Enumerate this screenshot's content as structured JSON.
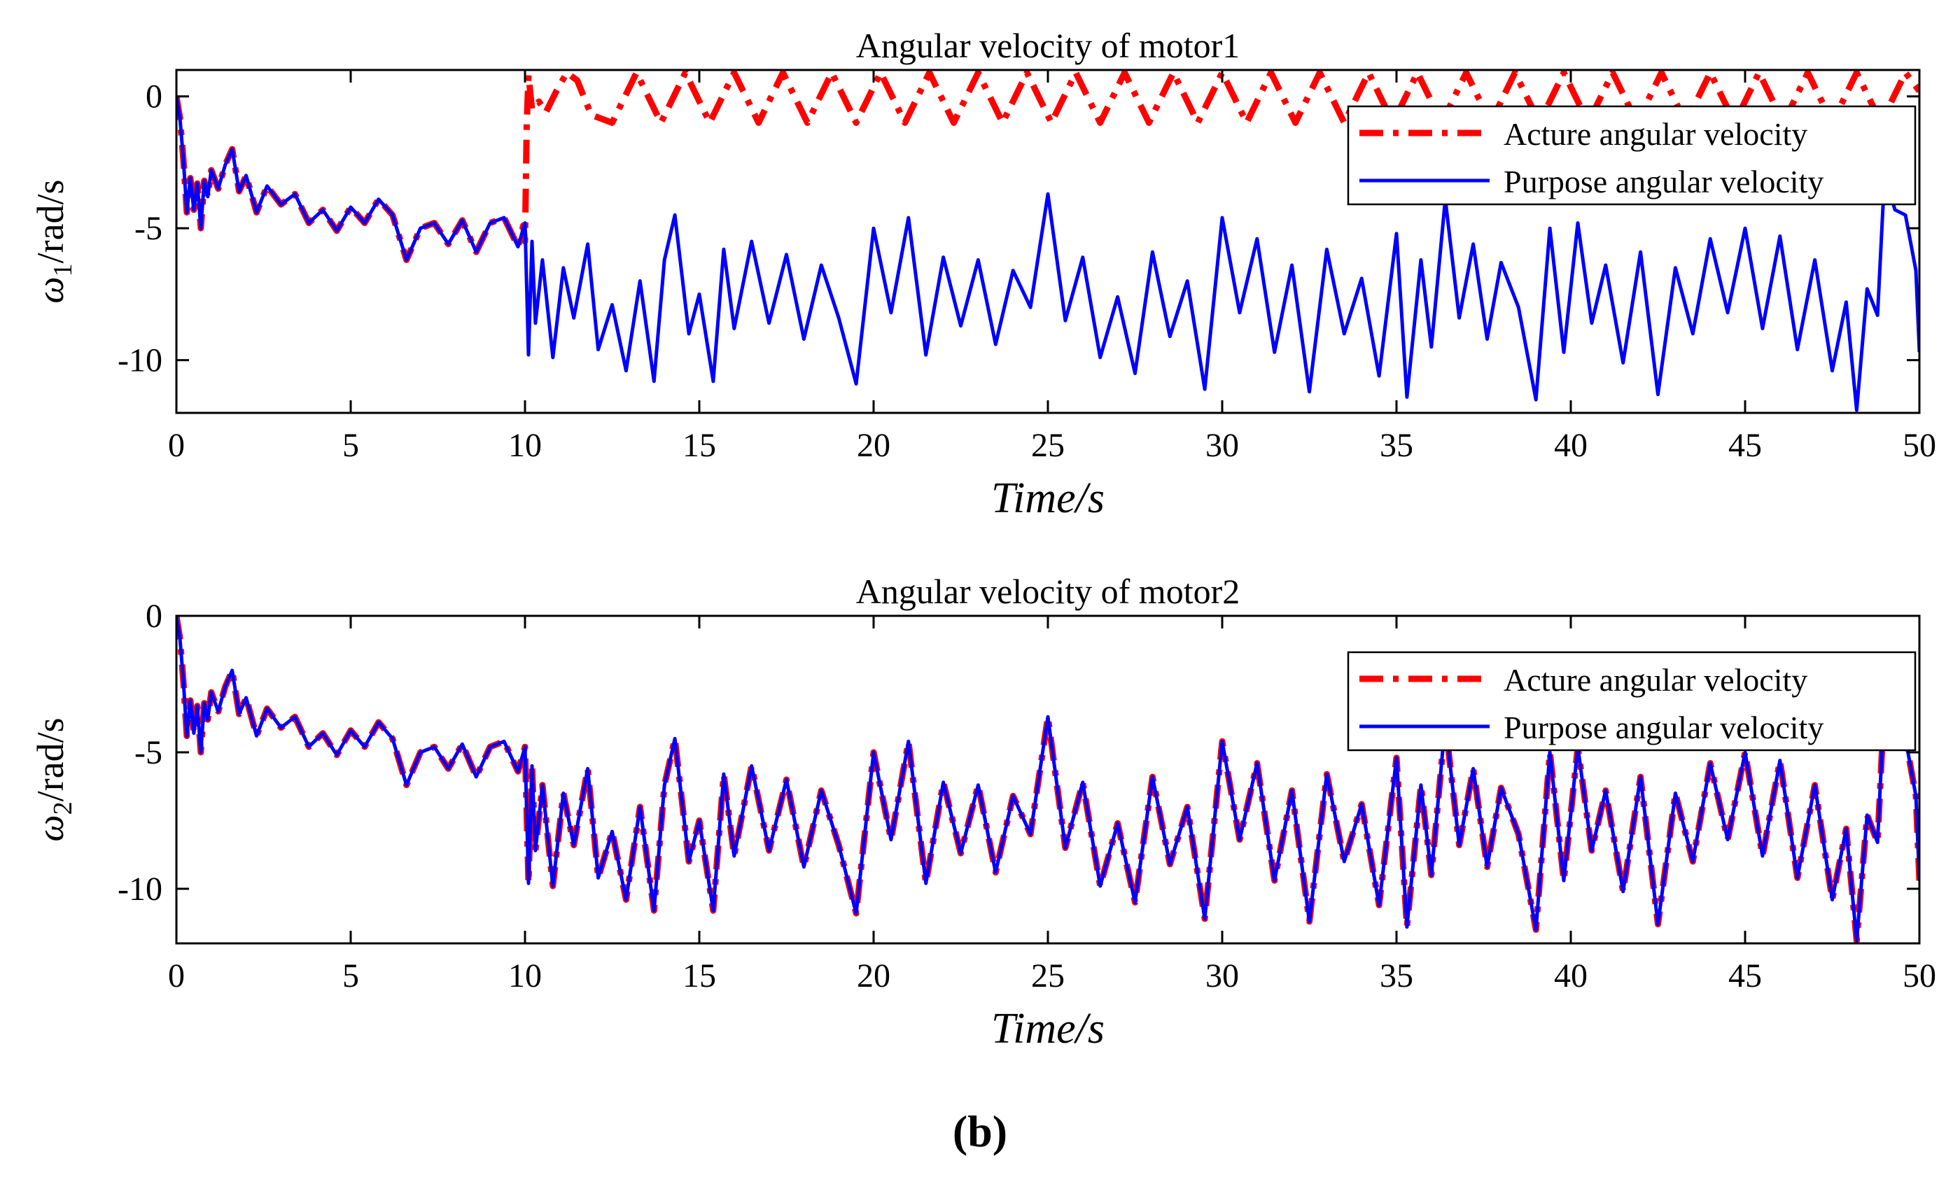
{
  "figure_label": "(b)",
  "colors": {
    "acture": "#ff0000",
    "purpose": "#0000ff",
    "axis": "#000000",
    "background": "#ffffff"
  },
  "chart_data": [
    {
      "type": "line",
      "title": "Angular velocity of motor1",
      "xlabel": "Time/s",
      "ylabel": {
        "symbol": "ω",
        "subscript": "1",
        "unit": "/rad/s"
      },
      "xlim": [
        0,
        50
      ],
      "ylim": [
        -12,
        1
      ],
      "xticks": [
        0,
        5,
        10,
        15,
        20,
        25,
        30,
        35,
        40,
        45,
        50
      ],
      "yticks": [
        0,
        -5,
        -10
      ],
      "legend": {
        "position": "top-right",
        "entries": [
          "Acture angular velocity",
          "Purpose angular velocity"
        ]
      },
      "series": [
        {
          "name": "Acture angular velocity",
          "style": "dash-dot",
          "x": [
            0,
            0.1,
            0.2,
            0.3,
            0.4,
            0.5,
            0.6,
            0.7,
            0.8,
            0.9,
            1.0,
            1.2,
            1.4,
            1.6,
            1.8,
            2.0,
            2.3,
            2.6,
            3.0,
            3.4,
            3.8,
            4.2,
            4.6,
            5.0,
            5.4,
            5.8,
            6.2,
            6.6,
            7.0,
            7.4,
            7.8,
            8.2,
            8.6,
            9.0,
            9.4,
            9.8,
            9.95,
            10.0,
            10.05,
            10.1,
            10.2,
            10.4,
            10.6,
            10.9,
            11.2,
            11.5,
            11.9,
            12.5,
            13.2,
            13.9,
            14.6,
            15.3,
            16.0,
            16.7,
            17.4,
            18.1,
            18.8,
            19.5,
            20.2,
            20.9,
            21.6,
            22.3,
            23.0,
            23.7,
            24.4,
            25.1,
            25.8,
            26.5,
            27.2,
            27.9,
            28.6,
            29.3,
            30.0,
            30.7,
            31.4,
            32.1,
            32.8,
            33.5,
            34.2,
            34.9,
            35.6,
            36.3,
            37.0,
            37.7,
            38.4,
            39.1,
            39.8,
            40.5,
            41.2,
            41.9,
            42.6,
            43.3,
            44.0,
            44.7,
            45.4,
            46.1,
            46.8,
            47.5,
            48.2,
            48.9,
            49.6,
            50.0
          ],
          "y": [
            0,
            -0.8,
            -2.4,
            -4.4,
            -3.1,
            -4.3,
            -3.3,
            -5.0,
            -3.2,
            -3.8,
            -2.8,
            -3.5,
            -2.6,
            -2.0,
            -3.6,
            -3.0,
            -4.4,
            -3.4,
            -4.1,
            -3.7,
            -4.8,
            -4.3,
            -5.1,
            -4.2,
            -4.8,
            -3.9,
            -4.5,
            -6.2,
            -5.0,
            -4.8,
            -5.6,
            -4.7,
            -5.9,
            -4.8,
            -4.6,
            -5.7,
            -4.9,
            -5.5,
            -1.0,
            0.8,
            -0.5,
            -0.2,
            -0.6,
            0.2,
            0.9,
            0.6,
            -0.7,
            -1.0,
            0.9,
            -1.0,
            0.9,
            -1.0,
            0.9,
            -1.0,
            0.9,
            -1.0,
            0.9,
            -1.0,
            0.9,
            -1.0,
            0.9,
            -1.0,
            0.9,
            -1.0,
            0.9,
            -1.0,
            0.9,
            -1.0,
            0.9,
            -1.0,
            0.9,
            -1.0,
            0.9,
            -1.0,
            0.9,
            -1.0,
            0.9,
            -1.0,
            0.9,
            -1.0,
            0.9,
            -1.0,
            0.9,
            -1.0,
            0.9,
            -1.0,
            0.9,
            -1.0,
            0.9,
            -1.0,
            0.9,
            -1.0,
            0.9,
            -1.0,
            0.9,
            -1.0,
            0.9,
            -1.0,
            0.9,
            -1.0,
            0.9,
            0.2
          ]
        },
        {
          "name": "Purpose angular velocity",
          "style": "solid",
          "x": [
            0,
            0.1,
            0.2,
            0.3,
            0.4,
            0.5,
            0.6,
            0.7,
            0.8,
            0.9,
            1.0,
            1.2,
            1.4,
            1.6,
            1.8,
            2.0,
            2.3,
            2.6,
            3.0,
            3.4,
            3.8,
            4.2,
            4.6,
            5.0,
            5.4,
            5.8,
            6.2,
            6.6,
            7.0,
            7.4,
            7.8,
            8.2,
            8.6,
            9.0,
            9.4,
            9.8,
            10.0,
            10.1,
            10.2,
            10.3,
            10.5,
            10.8,
            11.1,
            11.4,
            11.8,
            12.1,
            12.5,
            12.9,
            13.3,
            13.7,
            14.0,
            14.3,
            14.7,
            15.0,
            15.4,
            15.7,
            16.0,
            16.5,
            17.0,
            17.5,
            18.0,
            18.5,
            19.0,
            19.5,
            20.0,
            20.5,
            21.0,
            21.5,
            22.0,
            22.5,
            23.0,
            23.5,
            24.0,
            24.5,
            25.0,
            25.5,
            26.0,
            26.5,
            27.0,
            27.5,
            28.0,
            28.5,
            29.0,
            29.5,
            30.0,
            30.5,
            31.0,
            31.5,
            32.0,
            32.5,
            33.0,
            33.5,
            34.0,
            34.5,
            35.0,
            35.3,
            35.7,
            36.0,
            36.4,
            36.8,
            37.2,
            37.6,
            38.0,
            38.5,
            39.0,
            39.4,
            39.8,
            40.2,
            40.6,
            41.0,
            41.5,
            42.0,
            42.5,
            43.0,
            43.5,
            44.0,
            44.5,
            45.0,
            45.5,
            46.0,
            46.5,
            47.0,
            47.5,
            47.9,
            48.2,
            48.5,
            48.8,
            49.0,
            49.3,
            49.6,
            49.9,
            50.0
          ],
          "y": [
            0,
            -0.8,
            -2.4,
            -4.4,
            -3.1,
            -4.3,
            -3.3,
            -5.0,
            -3.2,
            -3.8,
            -2.8,
            -3.5,
            -2.6,
            -2.0,
            -3.6,
            -3.0,
            -4.4,
            -3.4,
            -4.1,
            -3.7,
            -4.8,
            -4.3,
            -5.1,
            -4.2,
            -4.8,
            -3.9,
            -4.5,
            -6.2,
            -5.0,
            -4.8,
            -5.6,
            -4.7,
            -5.9,
            -4.8,
            -4.6,
            -5.7,
            -4.8,
            -9.8,
            -5.5,
            -8.6,
            -6.2,
            -9.9,
            -6.5,
            -8.4,
            -5.6,
            -9.6,
            -7.9,
            -10.4,
            -7.0,
            -10.8,
            -6.2,
            -4.5,
            -9.0,
            -7.5,
            -10.8,
            -5.8,
            -8.8,
            -5.5,
            -8.6,
            -6.0,
            -9.2,
            -6.4,
            -8.4,
            -10.9,
            -5.0,
            -8.2,
            -4.6,
            -9.8,
            -6.1,
            -8.7,
            -6.2,
            -9.4,
            -6.6,
            -8.0,
            -3.7,
            -8.5,
            -6.1,
            -9.9,
            -7.6,
            -10.5,
            -5.9,
            -9.1,
            -7.0,
            -11.1,
            -4.6,
            -8.2,
            -5.4,
            -9.7,
            -6.4,
            -11.2,
            -5.8,
            -9.0,
            -6.9,
            -10.6,
            -5.2,
            -11.4,
            -6.2,
            -9.5,
            -3.9,
            -8.4,
            -5.6,
            -9.2,
            -6.3,
            -8.0,
            -11.5,
            -5.0,
            -9.7,
            -4.8,
            -8.6,
            -6.4,
            -10.1,
            -5.9,
            -11.3,
            -6.5,
            -9.0,
            -5.4,
            -8.2,
            -5.0,
            -8.8,
            -5.3,
            -9.6,
            -6.2,
            -10.4,
            -7.8,
            -11.9,
            -7.3,
            -8.3,
            -3.0,
            -4.3,
            -4.5,
            -6.6,
            -9.7
          ]
        }
      ]
    },
    {
      "type": "line",
      "title": "Angular velocity of motor2",
      "xlabel": "Time/s",
      "ylabel": {
        "symbol": "ω",
        "subscript": "2",
        "unit": "/rad/s"
      },
      "xlim": [
        0,
        50
      ],
      "ylim": [
        -12,
        0
      ],
      "xticks": [
        0,
        5,
        10,
        15,
        20,
        25,
        30,
        35,
        40,
        45,
        50
      ],
      "yticks": [
        0,
        -5,
        -10
      ],
      "legend": {
        "position": "top-right",
        "entries": [
          "Acture angular velocity",
          "Purpose angular velocity"
        ]
      },
      "series": [
        {
          "name": "Acture angular velocity",
          "style": "dash-dot",
          "x": [
            0,
            0.1,
            0.2,
            0.3,
            0.4,
            0.5,
            0.6,
            0.7,
            0.8,
            0.9,
            1.0,
            1.2,
            1.4,
            1.6,
            1.8,
            2.0,
            2.3,
            2.6,
            3.0,
            3.4,
            3.8,
            4.2,
            4.6,
            5.0,
            5.4,
            5.8,
            6.2,
            6.6,
            7.0,
            7.4,
            7.8,
            8.2,
            8.6,
            9.0,
            9.4,
            9.8,
            10.0,
            10.1,
            10.2,
            10.3,
            10.5,
            10.8,
            11.1,
            11.4,
            11.8,
            12.1,
            12.5,
            12.9,
            13.3,
            13.7,
            14.0,
            14.3,
            14.7,
            15.0,
            15.4,
            15.7,
            16.0,
            16.5,
            17.0,
            17.5,
            18.0,
            18.5,
            19.0,
            19.5,
            20.0,
            20.5,
            21.0,
            21.5,
            22.0,
            22.5,
            23.0,
            23.5,
            24.0,
            24.5,
            25.0,
            25.5,
            26.0,
            26.5,
            27.0,
            27.5,
            28.0,
            28.5,
            29.0,
            29.5,
            30.0,
            30.5,
            31.0,
            31.5,
            32.0,
            32.5,
            33.0,
            33.5,
            34.0,
            34.5,
            35.0,
            35.3,
            35.7,
            36.0,
            36.4,
            36.8,
            37.2,
            37.6,
            38.0,
            38.5,
            39.0,
            39.4,
            39.8,
            40.2,
            40.6,
            41.0,
            41.5,
            42.0,
            42.5,
            43.0,
            43.5,
            44.0,
            44.5,
            45.0,
            45.5,
            46.0,
            46.5,
            47.0,
            47.5,
            47.9,
            48.2,
            48.5,
            48.8,
            49.0,
            49.3,
            49.6,
            49.9,
            50.0
          ],
          "y": [
            0,
            -0.8,
            -2.4,
            -4.4,
            -3.1,
            -4.3,
            -3.3,
            -5.0,
            -3.2,
            -3.8,
            -2.8,
            -3.5,
            -2.6,
            -2.0,
            -3.6,
            -3.0,
            -4.4,
            -3.4,
            -4.1,
            -3.7,
            -4.8,
            -4.3,
            -5.1,
            -4.2,
            -4.8,
            -3.9,
            -4.5,
            -6.2,
            -5.0,
            -4.8,
            -5.6,
            -4.7,
            -5.9,
            -4.8,
            -4.6,
            -5.7,
            -4.8,
            -9.8,
            -5.5,
            -8.6,
            -6.2,
            -9.9,
            -6.5,
            -8.4,
            -5.6,
            -9.6,
            -7.9,
            -10.4,
            -7.0,
            -10.8,
            -6.2,
            -4.5,
            -9.0,
            -7.5,
            -10.8,
            -5.8,
            -8.8,
            -5.5,
            -8.6,
            -6.0,
            -9.2,
            -6.4,
            -8.4,
            -10.9,
            -5.0,
            -8.2,
            -4.6,
            -9.8,
            -6.1,
            -8.7,
            -6.2,
            -9.4,
            -6.6,
            -8.0,
            -3.7,
            -8.5,
            -6.1,
            -9.9,
            -7.6,
            -10.5,
            -5.9,
            -9.1,
            -7.0,
            -11.1,
            -4.6,
            -8.2,
            -5.4,
            -9.7,
            -6.4,
            -11.2,
            -5.8,
            -9.0,
            -6.9,
            -10.6,
            -5.2,
            -11.4,
            -6.2,
            -9.5,
            -3.9,
            -8.4,
            -5.6,
            -9.2,
            -6.3,
            -8.0,
            -11.5,
            -5.0,
            -9.7,
            -4.8,
            -8.6,
            -6.4,
            -10.1,
            -5.9,
            -11.3,
            -6.5,
            -9.0,
            -5.4,
            -8.2,
            -5.0,
            -8.8,
            -5.3,
            -9.6,
            -6.2,
            -10.4,
            -7.8,
            -11.9,
            -7.3,
            -8.3,
            -3.0,
            -4.3,
            -4.5,
            -6.6,
            -9.7
          ]
        },
        {
          "name": "Purpose angular velocity",
          "style": "solid",
          "x": [
            0,
            0.1,
            0.2,
            0.3,
            0.4,
            0.5,
            0.6,
            0.7,
            0.8,
            0.9,
            1.0,
            1.2,
            1.4,
            1.6,
            1.8,
            2.0,
            2.3,
            2.6,
            3.0,
            3.4,
            3.8,
            4.2,
            4.6,
            5.0,
            5.4,
            5.8,
            6.2,
            6.6,
            7.0,
            7.4,
            7.8,
            8.2,
            8.6,
            9.0,
            9.4,
            9.8,
            10.0,
            10.1,
            10.2,
            10.3,
            10.5,
            10.8,
            11.1,
            11.4,
            11.8,
            12.1,
            12.5,
            12.9,
            13.3,
            13.7,
            14.0,
            14.3,
            14.7,
            15.0,
            15.4,
            15.7,
            16.0,
            16.5,
            17.0,
            17.5,
            18.0,
            18.5,
            19.0,
            19.5,
            20.0,
            20.5,
            21.0,
            21.5,
            22.0,
            22.5,
            23.0,
            23.5,
            24.0,
            24.5,
            25.0,
            25.5,
            26.0,
            26.5,
            27.0,
            27.5,
            28.0,
            28.5,
            29.0,
            29.5,
            30.0,
            30.5,
            31.0,
            31.5,
            32.0,
            32.5,
            33.0,
            33.5,
            34.0,
            34.5,
            35.0,
            35.3,
            35.7,
            36.0,
            36.4,
            36.8,
            37.2,
            37.6,
            38.0,
            38.5,
            39.0,
            39.4,
            39.8,
            40.2,
            40.6,
            41.0,
            41.5,
            42.0,
            42.5,
            43.0,
            43.5,
            44.0,
            44.5,
            45.0,
            45.5,
            46.0,
            46.5,
            47.0,
            47.5,
            47.9,
            48.2,
            48.5,
            48.8,
            49.0,
            49.3,
            49.6,
            49.9,
            50.0
          ],
          "y": [
            0,
            -0.8,
            -2.4,
            -4.4,
            -3.1,
            -4.3,
            -3.3,
            -5.0,
            -3.2,
            -3.8,
            -2.8,
            -3.5,
            -2.6,
            -2.0,
            -3.6,
            -3.0,
            -4.4,
            -3.4,
            -4.1,
            -3.7,
            -4.8,
            -4.3,
            -5.1,
            -4.2,
            -4.8,
            -3.9,
            -4.5,
            -6.2,
            -5.0,
            -4.8,
            -5.6,
            -4.7,
            -5.9,
            -4.8,
            -4.6,
            -5.7,
            -4.8,
            -9.8,
            -5.5,
            -8.6,
            -6.2,
            -9.9,
            -6.5,
            -8.4,
            -5.6,
            -9.6,
            -7.9,
            -10.4,
            -7.0,
            -10.8,
            -6.2,
            -4.5,
            -9.0,
            -7.5,
            -10.8,
            -5.8,
            -8.8,
            -5.5,
            -8.6,
            -6.0,
            -9.2,
            -6.4,
            -8.4,
            -10.9,
            -5.0,
            -8.2,
            -4.6,
            -9.8,
            -6.1,
            -8.7,
            -6.2,
            -9.4,
            -6.6,
            -8.0,
            -3.7,
            -8.5,
            -6.1,
            -9.9,
            -7.6,
            -10.5,
            -5.9,
            -9.1,
            -7.0,
            -11.1,
            -4.6,
            -8.2,
            -5.4,
            -9.7,
            -6.4,
            -11.2,
            -5.8,
            -9.0,
            -6.9,
            -10.6,
            -5.2,
            -11.4,
            -6.2,
            -9.5,
            -3.9,
            -8.4,
            -5.6,
            -9.2,
            -6.3,
            -8.0,
            -11.5,
            -5.0,
            -9.7,
            -4.8,
            -8.6,
            -6.4,
            -10.1,
            -5.9,
            -11.3,
            -6.5,
            -9.0,
            -5.4,
            -8.2,
            -5.0,
            -8.8,
            -5.3,
            -9.6,
            -6.2,
            -10.4,
            -7.8,
            -11.9,
            -7.3,
            -8.3,
            -3.0,
            -4.3,
            -4.5,
            -6.6,
            -9.7
          ]
        }
      ]
    }
  ]
}
